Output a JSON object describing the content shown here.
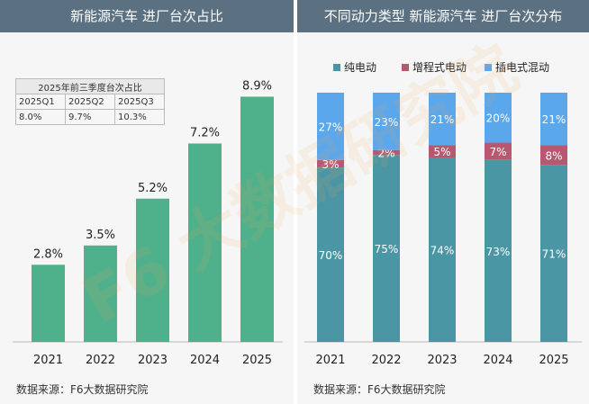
{
  "left_panel": {
    "title": "新能源汽车 进厂台次占比",
    "source": "数据来源：F6大数据研究院",
    "table": {
      "title": "2025年前三季度台次占比",
      "headers": [
        "2025Q1",
        "2025Q2",
        "2025Q3"
      ],
      "values": [
        "8.0%",
        "9.7%",
        "10.3%"
      ]
    }
  },
  "right_panel": {
    "title": "不同动力类型 新能源汽车 进厂台次分布",
    "source": "数据来源：F6大数据研究院"
  },
  "watermark": "F6 大数据研究院",
  "chart_data": [
    {
      "type": "bar",
      "title": "新能源汽车 进厂台次占比",
      "categories": [
        "2021",
        "2022",
        "2023",
        "2024",
        "2025"
      ],
      "values": [
        2.8,
        3.5,
        5.2,
        7.2,
        8.9
      ],
      "labels": [
        "2.8%",
        "3.5%",
        "5.2%",
        "7.2%",
        "8.9%"
      ],
      "unit": "%",
      "ylim": [
        0,
        9.6
      ],
      "color": "#4fb08c",
      "grid": false
    },
    {
      "type": "bar",
      "stacked": true,
      "title": "不同动力类型 新能源汽车 进厂台次分布",
      "categories": [
        "2021",
        "2022",
        "2023",
        "2024",
        "2025"
      ],
      "legend_position": "top",
      "series": [
        {
          "name": "纯电动",
          "values": [
            70,
            75,
            74,
            73,
            71
          ],
          "labels": [
            "70%",
            "75%",
            "74%",
            "73%",
            "71%"
          ],
          "color": "#4a96a4"
        },
        {
          "name": "增程式电动",
          "values": [
            3,
            2,
            5,
            7,
            8
          ],
          "labels": [
            "3%",
            "2%",
            "5%",
            "7%",
            "8%"
          ],
          "color": "#b85870"
        },
        {
          "name": "插电式混动",
          "values": [
            27,
            23,
            21,
            20,
            21
          ],
          "labels": [
            "27%",
            "23%",
            "21%",
            "20%",
            "21%"
          ],
          "color": "#5aa7ec"
        }
      ],
      "ylim": [
        0,
        100
      ],
      "grid": false
    }
  ]
}
